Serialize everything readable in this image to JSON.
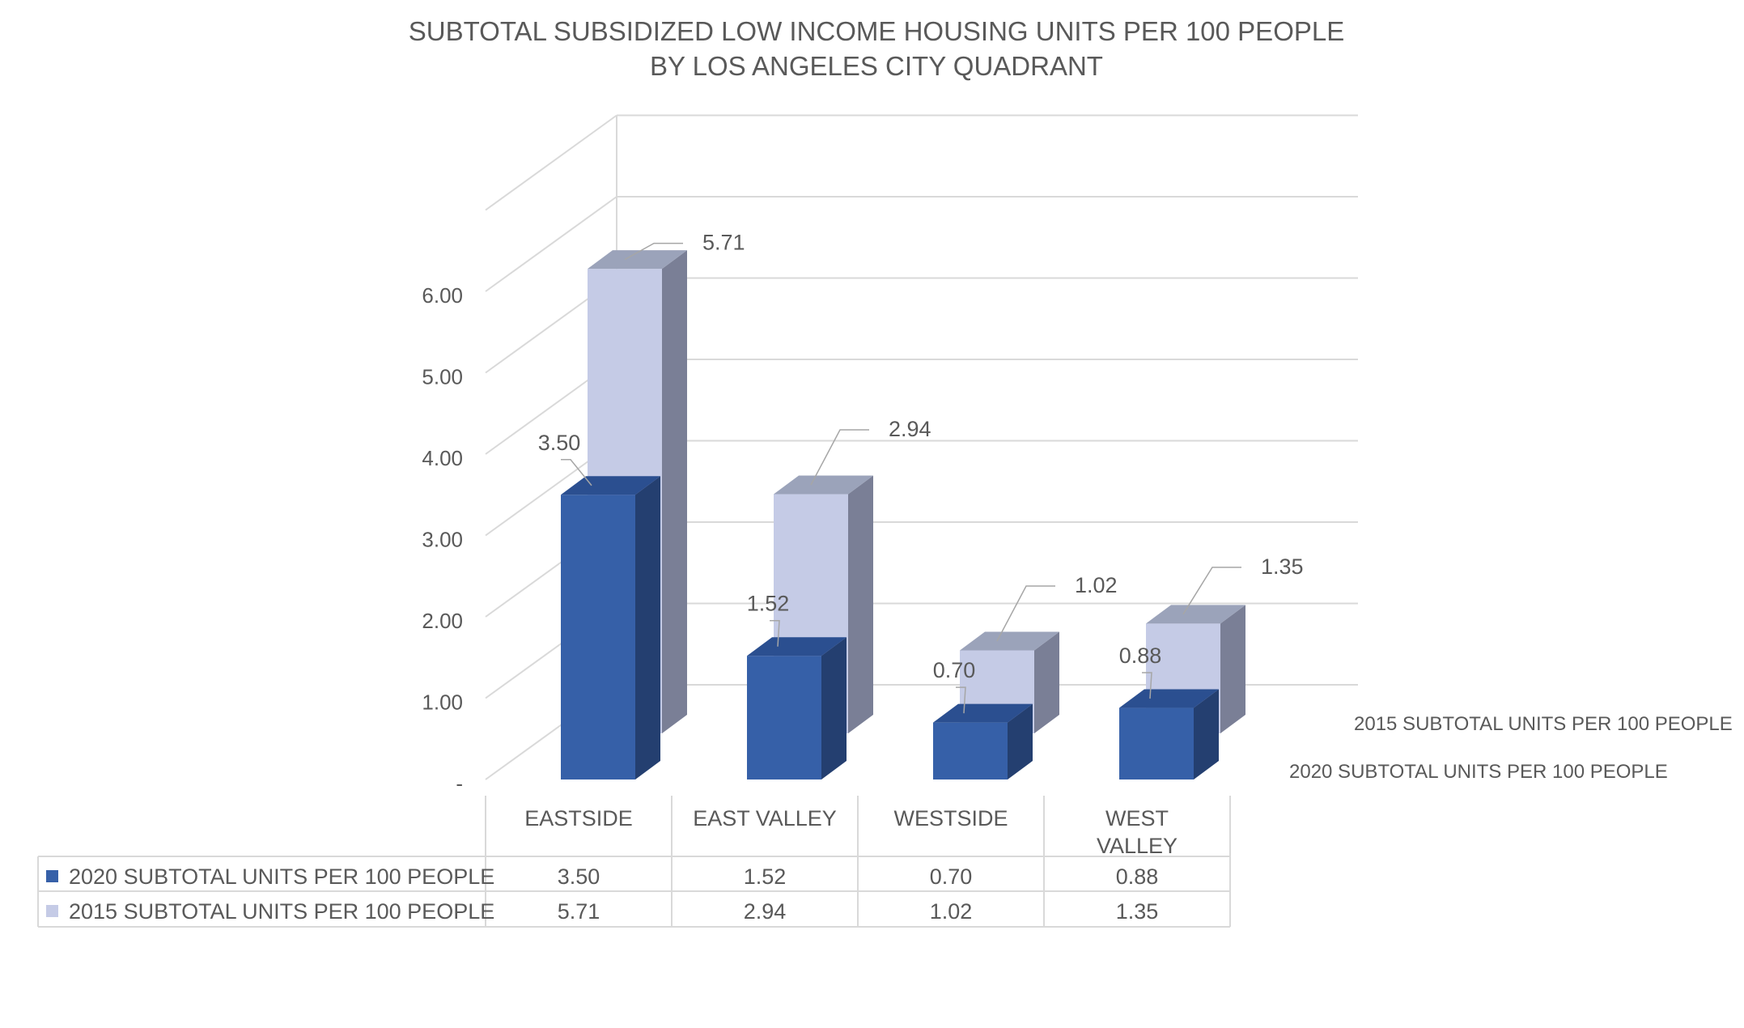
{
  "chart_data": {
    "type": "bar",
    "variant": "3d-clustered-with-data-table",
    "title_line1": "SUBTOTAL SUBSIDIZED LOW INCOME HOUSING UNITS PER 100 PEOPLE",
    "title_line2": "BY LOS ANGELES CITY QUADRANT",
    "categories": [
      "EASTSIDE",
      "EAST VALLEY",
      "WESTSIDE",
      "WEST VALLEY"
    ],
    "category_label_lines": [
      [
        "EASTSIDE"
      ],
      [
        "EAST VALLEY"
      ],
      [
        "WESTSIDE"
      ],
      [
        "WEST",
        "VALLEY"
      ]
    ],
    "series": [
      {
        "name": "2020 SUBTOTAL UNITS PER 100 PEOPLE",
        "values": [
          3.5,
          1.52,
          0.7,
          0.88
        ],
        "value_labels": [
          "3.50",
          "1.52",
          "0.70",
          "0.88"
        ],
        "color": "#3660a8",
        "side_color": "#243f70",
        "top_color": "#2b4f90"
      },
      {
        "name": "2015 SUBTOTAL UNITS PER 100 PEOPLE",
        "values": [
          5.71,
          2.94,
          1.02,
          1.35
        ],
        "value_labels": [
          "5.71",
          "2.94",
          "1.02",
          "1.35"
        ],
        "color": "#c5cbe6",
        "side_color": "#7a7f96",
        "top_color": "#9ba3ba"
      }
    ],
    "depth_axis_labels": [
      "2015 SUBTOTAL UNITS PER 100 PEOPLE",
      "2020 SUBTOTAL UNITS PER 100 PEOPLE"
    ],
    "y_ticks": [
      "-",
      "1.00",
      "2.00",
      "3.00",
      "4.00",
      "5.00",
      "6.00"
    ],
    "ylim": [
      0,
      6
    ],
    "gridlines": true,
    "legend": "data-table-below",
    "table": {
      "rows": [
        {
          "series": "2020 SUBTOTAL UNITS PER 100 PEOPLE",
          "cells": [
            "3.50",
            "1.52",
            "0.70",
            "0.88"
          ]
        },
        {
          "series": "2015 SUBTOTAL UNITS PER 100 PEOPLE",
          "cells": [
            "5.71",
            "2.94",
            "1.02",
            "1.35"
          ]
        }
      ]
    }
  }
}
